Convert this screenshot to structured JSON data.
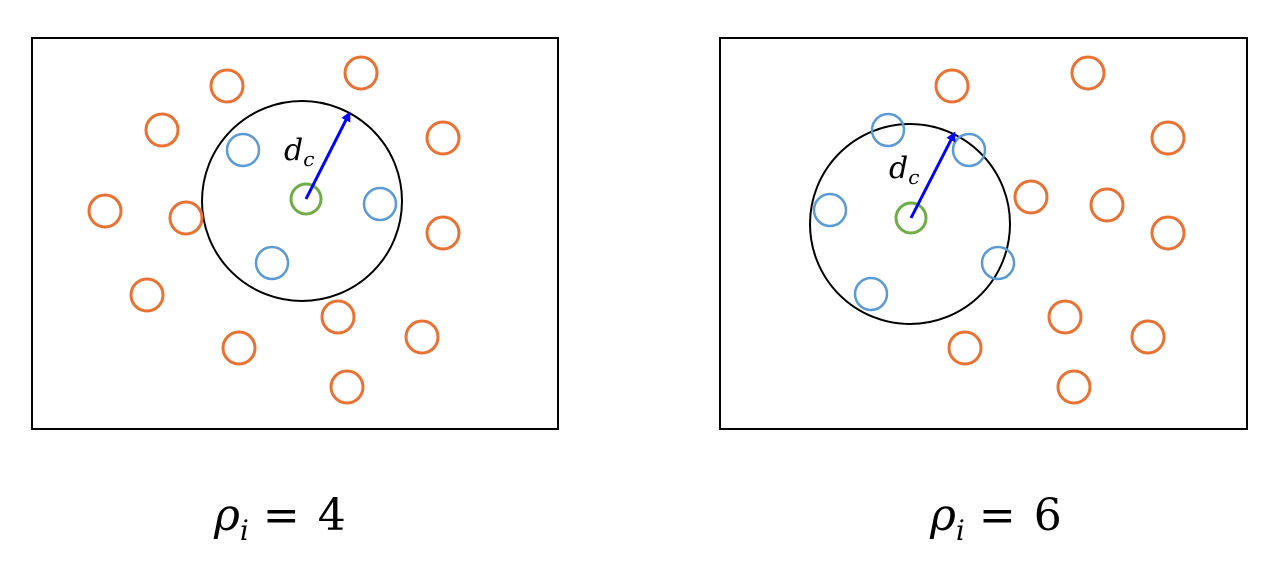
{
  "colors": {
    "outer_point": "#E97132",
    "inner_point": "#5B9BD5",
    "center_point": "#70AD47",
    "radius_arrow": "#0000FF",
    "frame": "#000000"
  },
  "panels": [
    {
      "radius_label_base": "d",
      "radius_label_sub": "c",
      "caption_symbol": "ρ",
      "caption_sub": "i",
      "caption_eq": "=",
      "caption_value": "4"
    },
    {
      "radius_label_base": "d",
      "radius_label_sub": "c",
      "caption_symbol": "ρ",
      "caption_sub": "i",
      "caption_eq": "=",
      "caption_value": "6"
    }
  ]
}
